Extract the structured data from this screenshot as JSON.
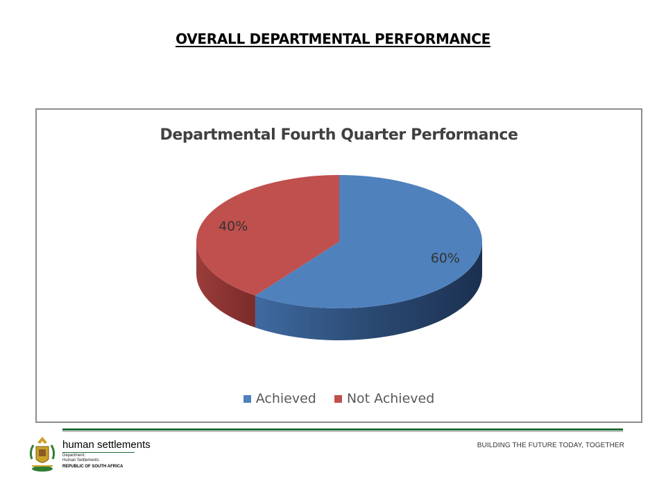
{
  "slide": {
    "title": "OVERALL  DEPARTMENTAL PERFORMANCE"
  },
  "chart_data": {
    "type": "pie",
    "title": "Departmental Fourth Quarter Performance",
    "categories": [
      "Achieved",
      "Not Achieved"
    ],
    "values": [
      60,
      40
    ],
    "labels": [
      "60%",
      "40%"
    ],
    "colors": [
      "#4f81bd",
      "#c0504d"
    ],
    "style": "3d",
    "legend_position": "bottom"
  },
  "footer": {
    "brand_name": "human settlements",
    "dept_line1": "Department:",
    "dept_line2": "Human Settlements",
    "country": "REPUBLIC OF SOUTH AFRICA",
    "tagline": "BUILDING THE FUTURE TODAY, TOGETHER",
    "brand_color": "#1e6b35"
  }
}
